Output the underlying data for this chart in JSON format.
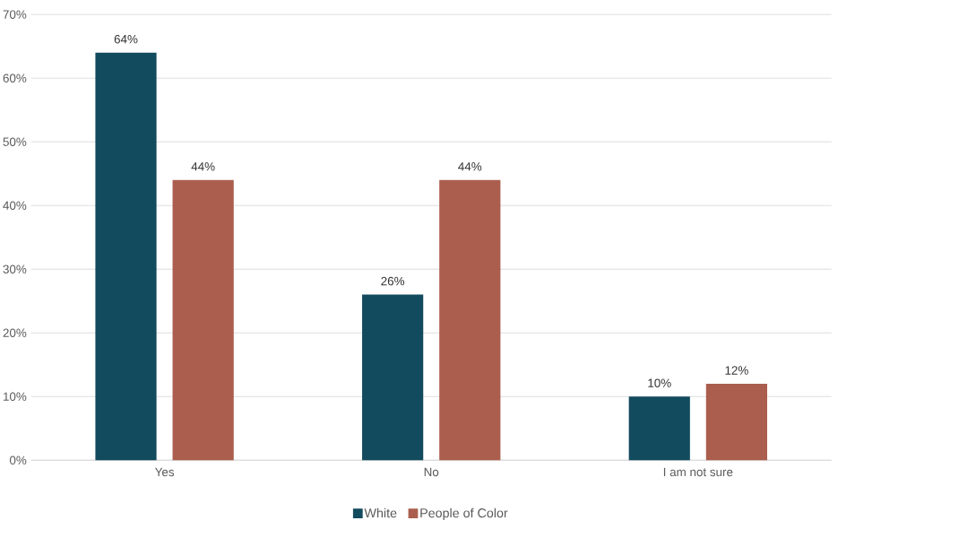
{
  "chart_data": {
    "type": "bar",
    "categories": [
      "Yes",
      "No",
      "I am not sure"
    ],
    "series": [
      {
        "name": "White",
        "color": "#124b5e",
        "values": [
          64,
          26,
          10
        ],
        "value_labels": [
          "64%",
          "26%",
          "10%"
        ]
      },
      {
        "name": "People of Color",
        "color": "#ab5e4e",
        "values": [
          44,
          44,
          12
        ],
        "value_labels": [
          "44%",
          "44%",
          "12%"
        ]
      }
    ],
    "ylim": [
      0,
      70
    ],
    "yticks": [
      {
        "value": 0,
        "label": "0%"
      },
      {
        "value": 10,
        "label": "10%"
      },
      {
        "value": 20,
        "label": "20%"
      },
      {
        "value": 30,
        "label": "30%"
      },
      {
        "value": 40,
        "label": "40%"
      },
      {
        "value": 50,
        "label": "50%"
      },
      {
        "value": 60,
        "label": "60%"
      },
      {
        "value": 70,
        "label": "70%"
      }
    ],
    "grid": "y",
    "legend": "bottom"
  }
}
